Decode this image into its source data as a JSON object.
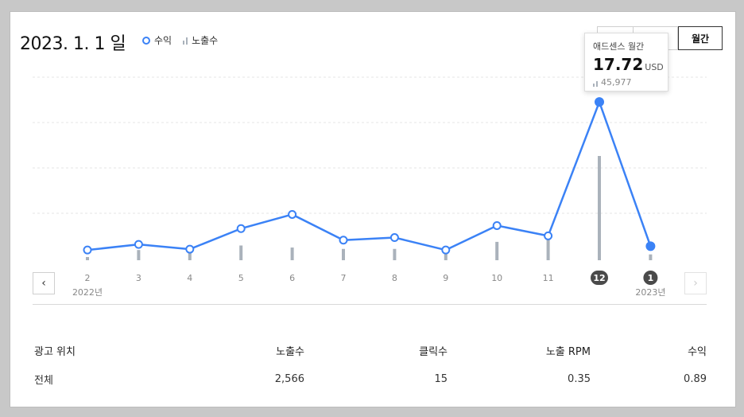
{
  "header": {
    "date_main": "2023. 1. 1",
    "date_suffix": "일",
    "legend_revenue": "수익",
    "legend_impressions": "노출수"
  },
  "buttons": {
    "b1": "",
    "b2": "",
    "monthly": "월간"
  },
  "nav": {
    "prev": "‹",
    "next": "›"
  },
  "tooltip": {
    "title": "애드센스 월간",
    "value": "17.72",
    "unit": "USD",
    "impressions": "45,977"
  },
  "chart_data": {
    "type": "line",
    "categories": [
      "2",
      "3",
      "4",
      "5",
      "6",
      "7",
      "8",
      "9",
      "10",
      "11",
      "12",
      "1"
    ],
    "year_labels": {
      "start": "2022년",
      "end": "2023년"
    },
    "highlighted_categories": [
      "12",
      "1"
    ],
    "series": [
      {
        "name": "수익",
        "values": [
          0.45,
          1.1,
          0.55,
          2.95,
          4.6,
          1.6,
          1.9,
          0.45,
          3.3,
          2.1,
          17.72,
          0.89
        ]
      },
      {
        "name": "노출수",
        "values": [
          1400,
          4500,
          3500,
          6500,
          5600,
          5000,
          5000,
          4000,
          8100,
          12600,
          45977,
          2566
        ]
      }
    ],
    "grid": true,
    "colors": {
      "line": "#3b82f6",
      "bar": "#aab2bb"
    }
  },
  "table": {
    "headers": [
      "광고 위치",
      "노출수",
      "클릭수",
      "노출 RPM",
      "수익"
    ],
    "rows": [
      [
        "전체",
        "2,566",
        "15",
        "0.35",
        "0.89"
      ]
    ]
  }
}
